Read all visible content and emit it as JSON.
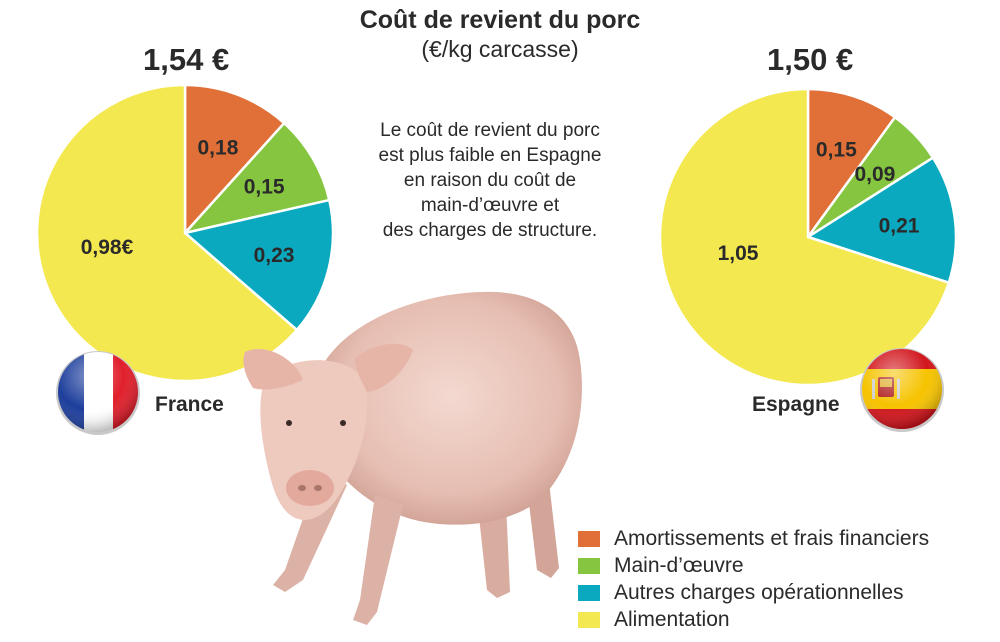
{
  "title": "Coût de revient du porc",
  "subtitle": "(€/kg carcasse)",
  "note": {
    "line1": "Le coût de revient du porc",
    "line2": "est plus faible en Espagne",
    "line3": "en raison du coût de",
    "line4": "main-d’œuvre et",
    "line5": "des charges de structure."
  },
  "colors": {
    "amortissements": "#e07038",
    "main_oeuvre": "#86c540",
    "autres": "#0aa9bf",
    "alimentation": "#f3e84f"
  },
  "chart_data": [
    {
      "type": "pie",
      "country": "France",
      "total_label": "1,54 €",
      "slices": [
        {
          "category": "Amortissements et frais financiers",
          "value": 0.18,
          "label": "0,18"
        },
        {
          "category": "Main-d’œuvre",
          "value": 0.15,
          "label": "0,15"
        },
        {
          "category": "Autres charges opérationnelles",
          "value": 0.23,
          "label": "0,23"
        },
        {
          "category": "Alimentation",
          "value": 0.98,
          "label": "0,98€"
        }
      ]
    },
    {
      "type": "pie",
      "country": "Espagne",
      "total_label": "1,50 €",
      "slices": [
        {
          "category": "Amortissements et frais financiers",
          "value": 0.15,
          "label": "0,15"
        },
        {
          "category": "Main-d’œuvre",
          "value": 0.09,
          "label": "0,09"
        },
        {
          "category": "Autres charges opérationnelles",
          "value": 0.21,
          "label": "0,21"
        },
        {
          "category": "Alimentation",
          "value": 1.05,
          "label": "1,05"
        }
      ]
    }
  ],
  "legend": [
    {
      "label": "Amortissements et frais financiers",
      "color": "#e07038"
    },
    {
      "label": "Main-d’œuvre",
      "color": "#86c540"
    },
    {
      "label": "Autres charges opérationnelles",
      "color": "#0aa9bf"
    },
    {
      "label": "Alimentation",
      "color": "#f3e84f"
    }
  ],
  "flags": {
    "france": "french-flag-icon",
    "espagne": "spanish-flag-icon"
  }
}
